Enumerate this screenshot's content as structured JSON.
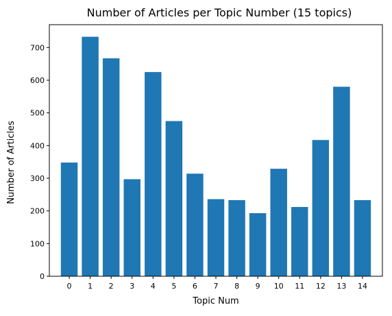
{
  "chart_data": {
    "type": "bar",
    "title": "Number of Articles per Topic Number (15 topics)",
    "xlabel": "Topic Num",
    "ylabel": "Number of Articles",
    "categories": [
      "0",
      "1",
      "2",
      "3",
      "4",
      "5",
      "6",
      "7",
      "8",
      "9",
      "10",
      "11",
      "12",
      "13",
      "14"
    ],
    "values": [
      348,
      733,
      667,
      297,
      625,
      475,
      314,
      236,
      233,
      193,
      329,
      212,
      417,
      580,
      233
    ],
    "ylim": [
      0,
      770
    ],
    "yticks": [
      0,
      100,
      200,
      300,
      400,
      500,
      600,
      700
    ],
    "grid": false,
    "bar_color": "#1f77b4"
  }
}
